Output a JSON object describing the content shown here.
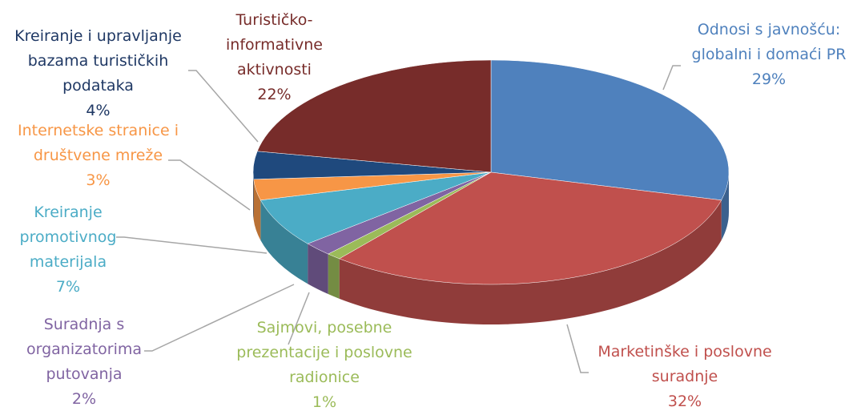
{
  "chart_data": {
    "type": "pie",
    "categories": [
      "Odnosi s javnošću: globalni i domaći PR",
      "Marketinške i poslovne suradnje",
      "Sajmovi, posebne prezentacije i poslovne radionice",
      "Suradnja s organizatorima putovanja",
      "Kreiranje promotivnog materijala",
      "Internetske stranice i društvene mreže",
      "Kreiranje i upravljanje bazama turističkih podataka",
      "Turističko-informativne aktivnosti"
    ],
    "values": [
      29,
      32,
      1,
      2,
      7,
      3,
      4,
      22
    ],
    "value_labels": [
      "29%",
      "32%",
      "1%",
      "2%",
      "7%",
      "3%",
      "4%",
      "22%"
    ],
    "colors": [
      "#4f81bd",
      "#c0504d",
      "#9bbb59",
      "#8064a2",
      "#4bacc6",
      "#f79646",
      "#1f497d",
      "#772c2a"
    ]
  }
}
